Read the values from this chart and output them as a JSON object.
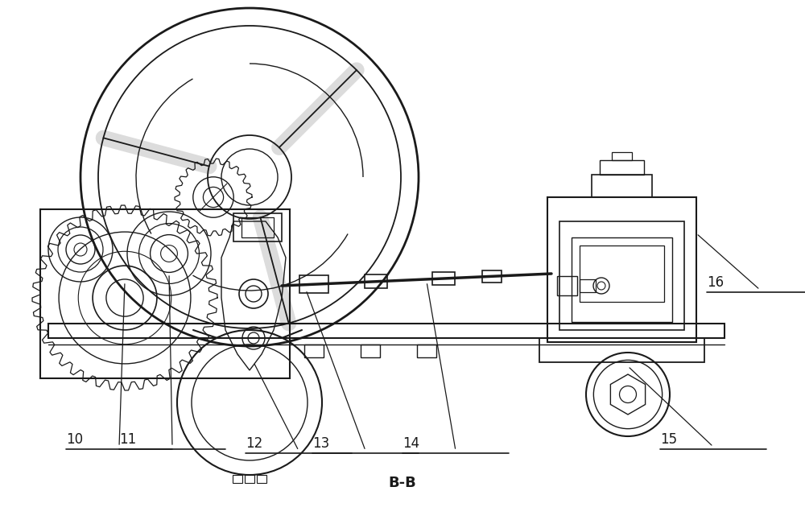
{
  "title": "B-B",
  "title_fontsize": 13,
  "bg_color": "#ffffff",
  "line_color": "#1a1a1a",
  "fig_width": 10.0,
  "fig_height": 6.51,
  "label_fontsize": 12
}
